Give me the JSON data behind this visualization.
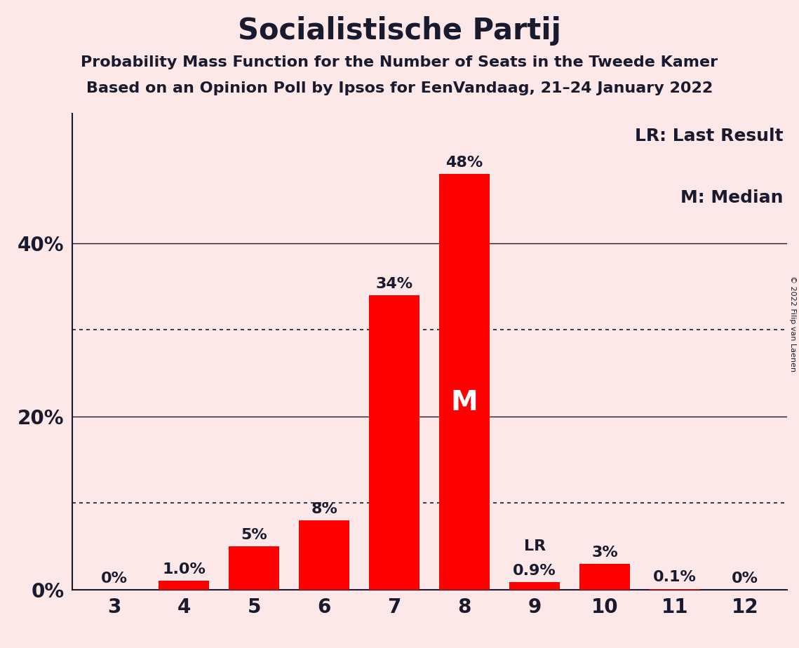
{
  "title": "Socialistische Partij",
  "subtitle1": "Probability Mass Function for the Number of Seats in the Tweede Kamer",
  "subtitle2": "Based on an Opinion Poll by Ipsos for EenVandaag, 21–24 January 2022",
  "copyright_text": "© 2022 Filip van Laenen",
  "categories": [
    3,
    4,
    5,
    6,
    7,
    8,
    9,
    10,
    11,
    12
  ],
  "values": [
    0.0,
    1.0,
    5.0,
    8.0,
    34.0,
    48.0,
    0.9,
    3.0,
    0.1,
    0.0
  ],
  "bar_color": "#ff0000",
  "background_color": "#fce8e8",
  "bar_labels": [
    "0%",
    "1.0%",
    "5%",
    "8%",
    "34%",
    "48%",
    "0.9%",
    "3%",
    "0.1%",
    "0%"
  ],
  "median_bar_index": 5,
  "median_label": "M",
  "lr_bar_index": 6,
  "lr_label": "LR",
  "legend_text1": "LR: Last Result",
  "legend_text2": "M: Median",
  "solid_gridlines": [
    20,
    40
  ],
  "dotted_gridlines": [
    10,
    30
  ],
  "yticks": [
    0,
    20,
    40
  ],
  "ytick_labels": [
    "0%",
    "20%",
    "40%"
  ],
  "ylim": [
    0,
    55
  ],
  "title_fontsize": 30,
  "subtitle_fontsize": 16,
  "label_fontsize": 16,
  "tick_fontsize": 20,
  "legend_fontsize": 18,
  "median_fontsize": 28
}
